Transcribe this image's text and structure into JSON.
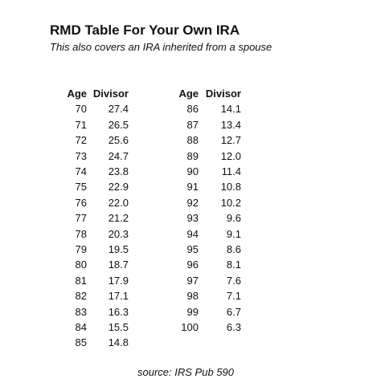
{
  "title": "RMD Table For Your Own IRA",
  "subtitle": "This also covers an IRA inherited from a spouse",
  "tables": [
    {
      "header": [
        "Age",
        "Divisor"
      ],
      "rows": [
        [
          70,
          "27.4"
        ],
        [
          71,
          "26.5"
        ],
        [
          72,
          "25.6"
        ],
        [
          73,
          "24.7"
        ],
        [
          74,
          "23.8"
        ],
        [
          75,
          "22.9"
        ],
        [
          76,
          "22.0"
        ],
        [
          77,
          "21.2"
        ],
        [
          78,
          "20.3"
        ],
        [
          79,
          "19.5"
        ],
        [
          80,
          "18.7"
        ],
        [
          81,
          "17.9"
        ],
        [
          82,
          "17.1"
        ],
        [
          83,
          "16.3"
        ],
        [
          84,
          "15.5"
        ],
        [
          85,
          "14.8"
        ]
      ]
    },
    {
      "header": [
        "Age",
        "Divisor"
      ],
      "rows": [
        [
          86,
          "14.1"
        ],
        [
          87,
          "13.4"
        ],
        [
          88,
          "12.7"
        ],
        [
          89,
          "12.0"
        ],
        [
          90,
          "11.4"
        ],
        [
          91,
          "10.8"
        ],
        [
          92,
          "10.2"
        ],
        [
          93,
          "9.6"
        ],
        [
          94,
          "9.1"
        ],
        [
          95,
          "8.6"
        ],
        [
          96,
          "8.1"
        ],
        [
          97,
          "7.6"
        ],
        [
          98,
          "7.1"
        ],
        [
          99,
          "6.7"
        ],
        [
          100,
          "6.3"
        ]
      ]
    }
  ],
  "source": "source: IRS Pub 590"
}
